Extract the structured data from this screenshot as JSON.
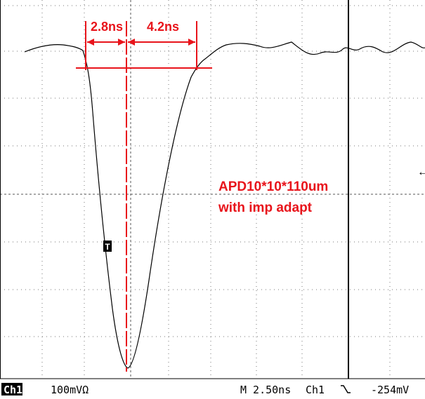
{
  "annotations": {
    "left_width": "2.8ns",
    "right_width": "4.2ns",
    "label_line1": "APD10*10*110um",
    "label_line2": "with imp adapt"
  },
  "trigger_marker": "T",
  "status_bar": {
    "channel": "Ch1",
    "scale": "100mVΩ",
    "timebase": "M 2.50ns",
    "trigger_channel": "Ch1",
    "trigger_level": "-254mV"
  }
}
